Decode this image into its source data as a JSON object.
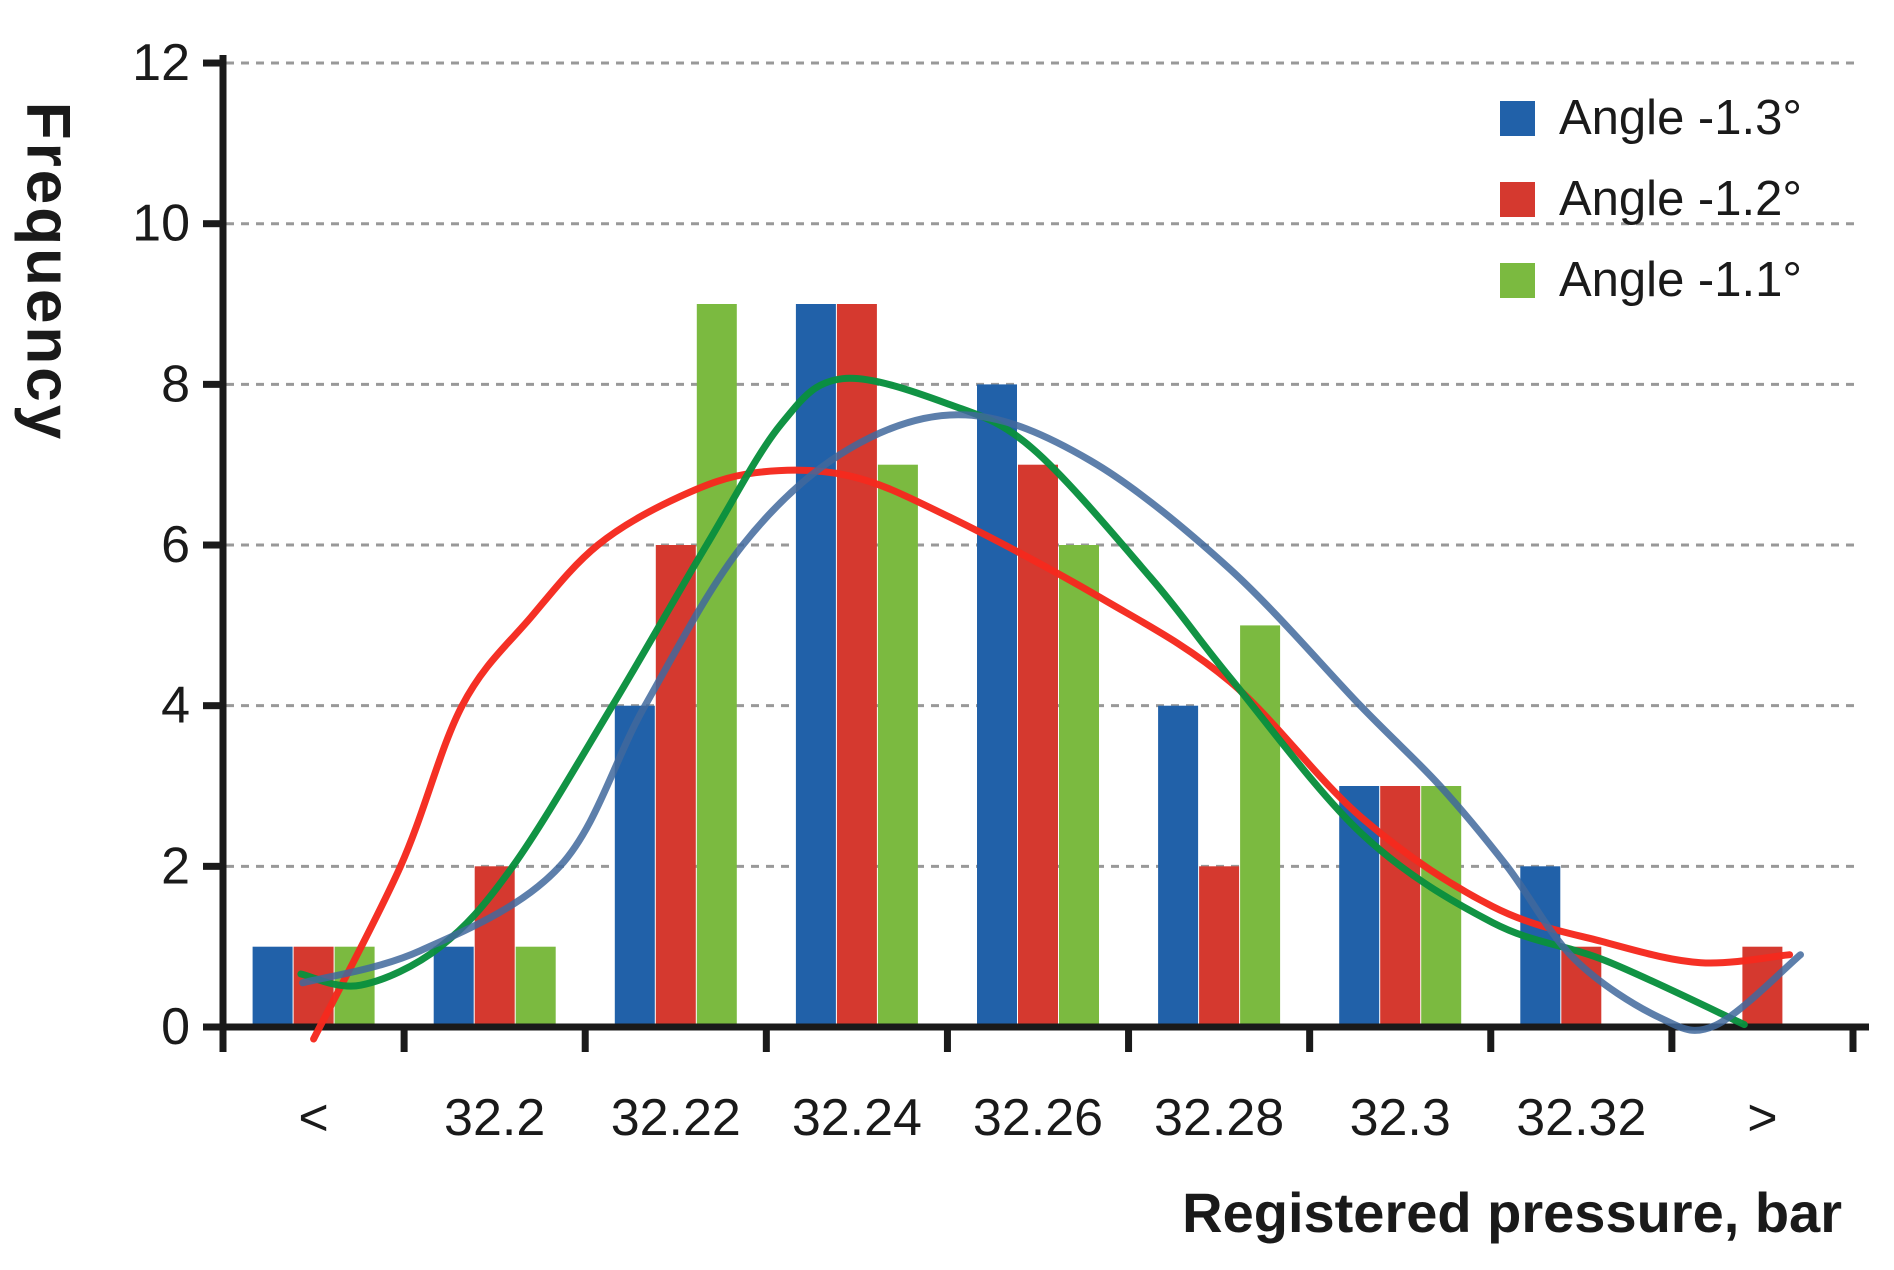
{
  "chart_data": {
    "type": "bar",
    "title": "",
    "xlabel": "Registered pressure, bar",
    "ylabel": "Frequency",
    "categories": [
      "<",
      "32.2",
      "32.22",
      "32.24",
      "32.26",
      "32.28",
      "32.3",
      "32.32",
      ">"
    ],
    "series": [
      {
        "name": "Angle -1.3°",
        "color": "#2161A9",
        "values": [
          1,
          1,
          4,
          9,
          8,
          4,
          3,
          2,
          0
        ]
      },
      {
        "name": "Angle -1.2°",
        "color": "#D5392F",
        "values": [
          1,
          2,
          6,
          9,
          7,
          2,
          3,
          1,
          1
        ]
      },
      {
        "name": "Angle -1.1°",
        "color": "#7BBA40",
        "values": [
          1,
          1,
          9,
          7,
          6,
          5,
          3,
          0,
          0
        ]
      }
    ],
    "fit_curves": [
      {
        "series": "Angle -1.2°",
        "color": "#F5291E",
        "points": [
          [
            0.5,
            -0.15
          ],
          [
            0.98,
            2
          ],
          [
            1.32,
            4
          ],
          [
            1.7,
            5.1
          ],
          [
            2.07,
            6
          ],
          [
            2.52,
            6.6
          ],
          [
            2.94,
            6.9
          ],
          [
            3.46,
            6.86
          ],
          [
            4.01,
            6.35
          ],
          [
            4.84,
            5.35
          ],
          [
            5.56,
            4.3
          ],
          [
            6.29,
            2.6
          ],
          [
            7.01,
            1.5
          ],
          [
            7.64,
            1.05
          ],
          [
            8.16,
            0.8
          ],
          [
            8.65,
            0.9
          ]
        ]
      },
      {
        "series": "Angle -1.1°",
        "color": "#098F3E",
        "points": [
          [
            0.43,
            0.66
          ],
          [
            0.76,
            0.52
          ],
          [
            1.2,
            1.0
          ],
          [
            1.6,
            2
          ],
          [
            2.15,
            4
          ],
          [
            2.67,
            6
          ],
          [
            3.08,
            7.5
          ],
          [
            3.42,
            8.07
          ],
          [
            4.01,
            7.75
          ],
          [
            4.47,
            7.2
          ],
          [
            5.12,
            5.6
          ],
          [
            5.56,
            4.35
          ],
          [
            6.29,
            2.4
          ],
          [
            7.01,
            1.3
          ],
          [
            7.64,
            0.82
          ],
          [
            8.4,
            0.03
          ]
        ]
      },
      {
        "series": "Angle -1.3°",
        "color": "#41689C",
        "points": [
          [
            0.44,
            0.55
          ],
          [
            1.09,
            0.95
          ],
          [
            1.86,
            2
          ],
          [
            2.33,
            4
          ],
          [
            2.87,
            6
          ],
          [
            3.46,
            7.2
          ],
          [
            4.1,
            7.62
          ],
          [
            4.79,
            7.05
          ],
          [
            5.56,
            5.7
          ],
          [
            6.28,
            4.0
          ],
          [
            6.72,
            3.0
          ],
          [
            7.09,
            2.0
          ],
          [
            7.46,
            0.85
          ],
          [
            7.93,
            0.12
          ],
          [
            8.24,
            0.02
          ],
          [
            8.71,
            0.9
          ]
        ]
      }
    ],
    "yticks": [
      "0",
      "2",
      "4",
      "6",
      "8",
      "10",
      "12"
    ],
    "ylim": [
      0,
      12
    ],
    "grid": "horizontal-dashed",
    "grid_color": "#999999",
    "axis_color": "#1a1a1a",
    "legend_position": "top-right"
  },
  "legend": {
    "items": [
      {
        "label": "Angle -1.3°",
        "color": "#2161A9"
      },
      {
        "label": "Angle -1.2°",
        "color": "#D5392F"
      },
      {
        "label": "Angle -1.1°",
        "color": "#7BBA40"
      }
    ]
  }
}
